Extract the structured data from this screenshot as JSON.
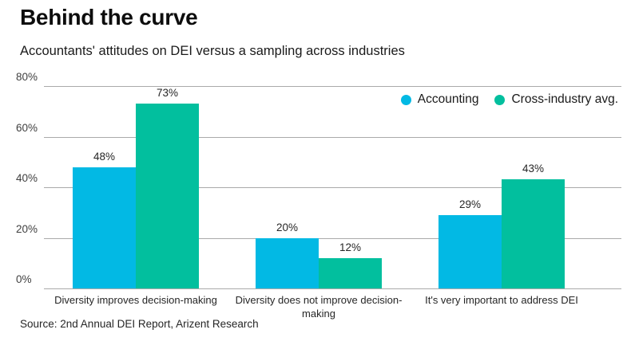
{
  "header": {
    "title": "Behind the curve",
    "subtitle": "Accountants' attitudes on DEI versus a sampling across industries"
  },
  "chart_data": {
    "type": "bar",
    "title": "Behind the curve",
    "subtitle": "Accountants' attitudes on DEI versus a sampling across industries",
    "categories": [
      "Diversity improves decision-making",
      "Diversity does not improve decision-making",
      "It's very important to address DEI"
    ],
    "series": [
      {
        "name": "Accounting",
        "color": "#02b9e4",
        "values": [
          48,
          20,
          29
        ]
      },
      {
        "name": "Cross-industry avg.",
        "color": "#02bf9e",
        "values": [
          73,
          12,
          43
        ]
      }
    ],
    "data_labels": [
      [
        "48%",
        "20%",
        "29%"
      ],
      [
        "73%",
        "12%",
        "43%"
      ]
    ],
    "yticks": [
      {
        "value": 0,
        "label": "0%"
      },
      {
        "value": 20,
        "label": "20%"
      },
      {
        "value": 40,
        "label": "40%"
      },
      {
        "value": 60,
        "label": "60%"
      },
      {
        "value": 80,
        "label": "80%"
      }
    ],
    "ylim": [
      0,
      80
    ],
    "grid": true,
    "legend_position": "top-right",
    "gridline_color": "#aaaaaa"
  },
  "footer": {
    "source": "Source: 2nd Annual DEI Report, Arizent Research"
  }
}
